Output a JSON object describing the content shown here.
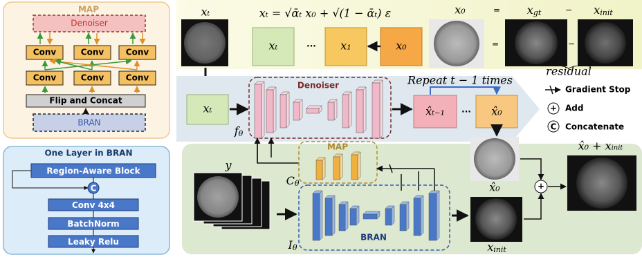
{
  "map_panel": {
    "title": "MAP",
    "denoiser": "Denoiser",
    "convs": [
      "Conv",
      "Conv",
      "Conv",
      "Conv",
      "Conv",
      "Conv"
    ],
    "flip_concat": "Flip and Concat",
    "bran": "BRAN"
  },
  "bran_layer_panel": {
    "title": "One Layer in BRAN",
    "blocks": [
      "Region-Aware Block",
      "Conv 4x4",
      "BatchNorm",
      "Leaky Relu"
    ],
    "concat_symbol": "C"
  },
  "forward_process": {
    "image_label": "xₜ",
    "formula": "xₜ = √ᾱₜ x₀ + √(1 − ᾱₜ) ε",
    "states": [
      "xₜ",
      "···",
      "x₁",
      "x₀"
    ],
    "x0_label": "x₀",
    "equals": "=",
    "xgt_label": {
      "base": "x",
      "sub": "gt"
    },
    "minus": "−",
    "xinit_label": {
      "base": "x",
      "sub": "init"
    },
    "brace_label": "residual"
  },
  "reverse_process": {
    "input": "xₜ",
    "denoiser": "Denoiser",
    "f_label": {
      "base": "f",
      "sub": "θ"
    },
    "repeat": "Repeat t − 1 times",
    "states": [
      "x̂ₜ₋₁",
      "···",
      "x̂₀"
    ]
  },
  "legend": [
    {
      "label": "Gradient Stop"
    },
    {
      "symbol": "+",
      "label": "Add"
    },
    {
      "symbol": "C",
      "label": "Concatenate"
    }
  ],
  "conditioning": {
    "y_label": "y",
    "map_title": "MAP",
    "c_label": {
      "base": "C",
      "sub": "θ"
    },
    "bran_title": "BRAN",
    "i_label": {
      "base": "I",
      "sub": "θ"
    },
    "x0_hat_label": "x̂₀",
    "xinit_label": {
      "base": "x",
      "sub": "init"
    },
    "add_symbol": "+",
    "output_label": "x̂₀ + xᵢₙᵢₜ"
  }
}
